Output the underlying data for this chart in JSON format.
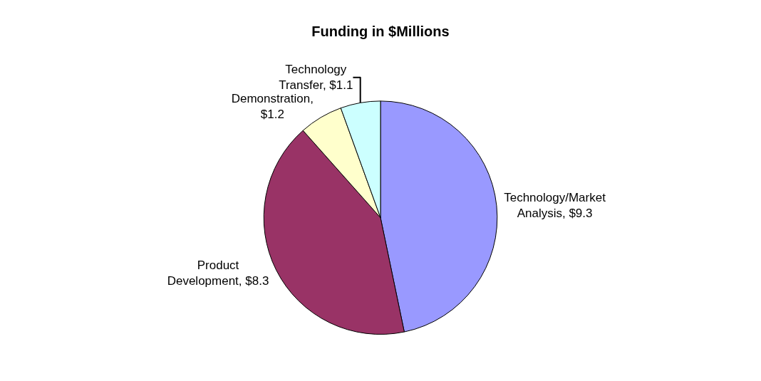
{
  "chart_data": {
    "type": "pie",
    "title": "Funding in $Millions",
    "categories": [
      "Technology/Market Analysis, $9.3",
      "Product Development, $8.3",
      "Demonstration, $1.2",
      "Technology Transfer, $1.1"
    ],
    "values": [
      9.3,
      8.3,
      1.2,
      1.1
    ],
    "colors": [
      "#9999ff",
      "#993366",
      "#ffffcc",
      "#ccffff"
    ],
    "legend": false
  }
}
